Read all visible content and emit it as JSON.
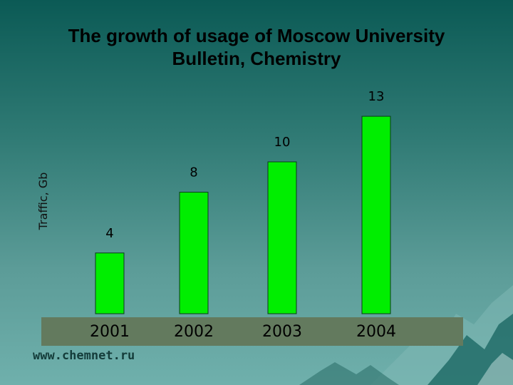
{
  "colors": {
    "background_top": "#0b5a55",
    "background_bottom": "#6fb0ac",
    "bar_fill": "#00ee00",
    "axis_band": "#637a5e"
  },
  "footer": {
    "url": "www.chemnet.ru"
  },
  "chart_data": {
    "type": "bar",
    "title": "The growth of usage of Moscow University Bulletin, Chemistry",
    "title_lines": [
      "The growth of usage of Moscow University",
      "Bulletin, Chemistry"
    ],
    "xlabel": "",
    "ylabel": "Traffic, Gb",
    "categories": [
      "2001",
      "2002",
      "2003",
      "2004"
    ],
    "values": [
      4,
      8,
      10,
      13
    ],
    "data_labels": [
      "4",
      "8",
      "10",
      "13"
    ],
    "ylim": [
      0,
      15
    ],
    "grid": false,
    "legend": "none"
  }
}
